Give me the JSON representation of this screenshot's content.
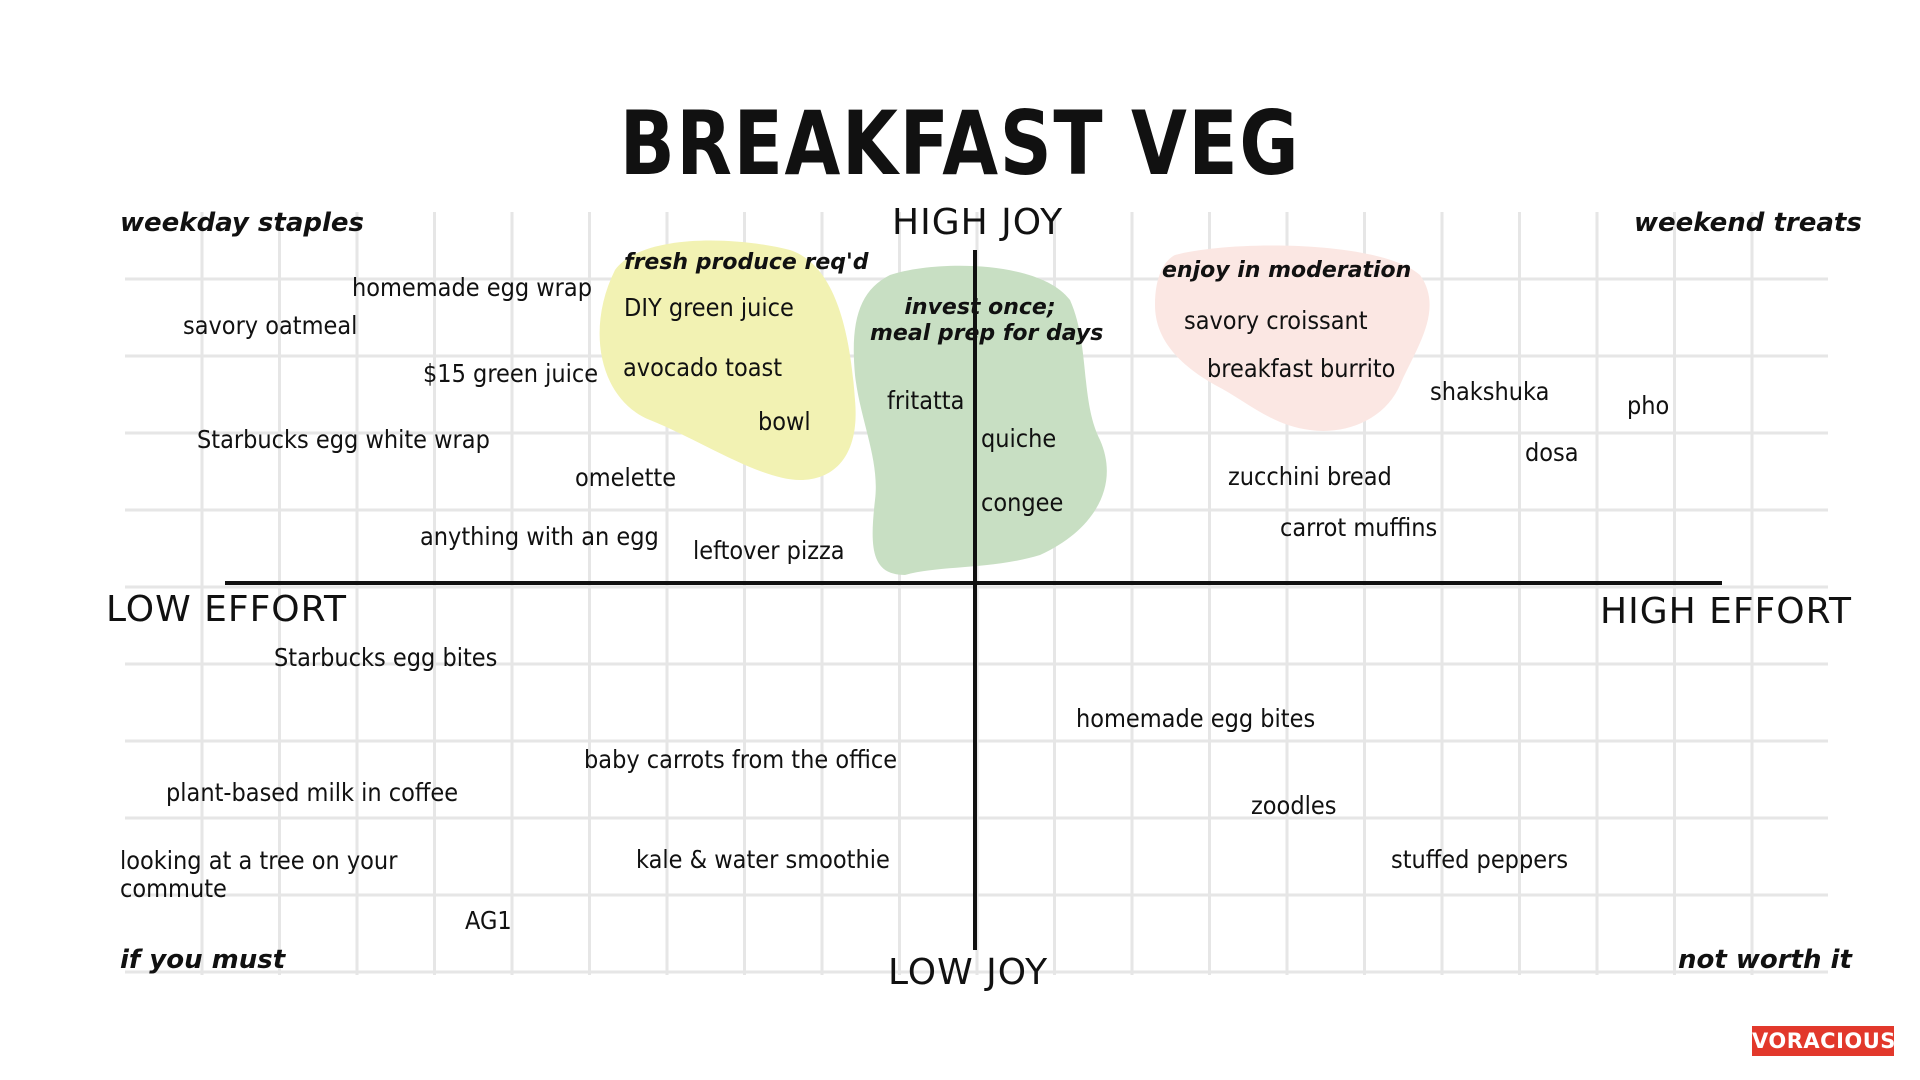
{
  "title": "BREAKFAST VEG",
  "axes": {
    "top": "HIGH JOY",
    "bottom": "LOW JOY",
    "left": "LOW EFFORT",
    "right": "HIGH EFFORT"
  },
  "corners": {
    "top_left": "weekday staples",
    "top_right": "weekend treats",
    "bottom_left": "if you must",
    "bottom_right": "not worth it"
  },
  "zones": {
    "yellow": {
      "label": "fresh produce req'd",
      "color": "#f2f2b3"
    },
    "green": {
      "label_line1": "invest once;",
      "label_line2": "meal prep for days",
      "color": "#c8dfc3"
    },
    "pink": {
      "label": "enjoy in moderation",
      "color": "#fbe7e3"
    }
  },
  "items": {
    "homemade_egg_wrap": "homemade egg wrap",
    "savory_oatmeal": "savory oatmeal",
    "green_juice_15": "$15 green juice",
    "starbucks_egg_white_wrap": "Starbucks egg white wrap",
    "omelette": "omelette",
    "anything_with_egg": "anything with an egg",
    "diy_green_juice": "DIY green juice",
    "avocado_toast": "avocado toast",
    "bowl": "bowl",
    "leftover_pizza": "leftover pizza",
    "fritatta": "fritatta",
    "quiche": "quiche",
    "congee": "congee",
    "savory_croissant": "savory croissant",
    "breakfast_burrito": "breakfast burrito",
    "shakshuka": "shakshuka",
    "pho": "pho",
    "dosa": "dosa",
    "zucchini_bread": "zucchini bread",
    "carrot_muffins": "carrot muffins",
    "starbucks_egg_bites": "Starbucks egg bites",
    "homemade_egg_bites": "homemade egg bites",
    "baby_carrots": "baby carrots from the office",
    "plant_milk": "plant-based milk in coffee",
    "tree_commute": "looking at a tree on your commute",
    "kale_smoothie": "kale & water smoothie",
    "ag1": "AG1",
    "zoodles": "zoodles",
    "stuffed_peppers": "stuffed peppers"
  },
  "brand": "VORACIOUS",
  "colors": {
    "grid": "#e6e6e6",
    "axis": "#111111",
    "brand": "#e2382b"
  }
}
